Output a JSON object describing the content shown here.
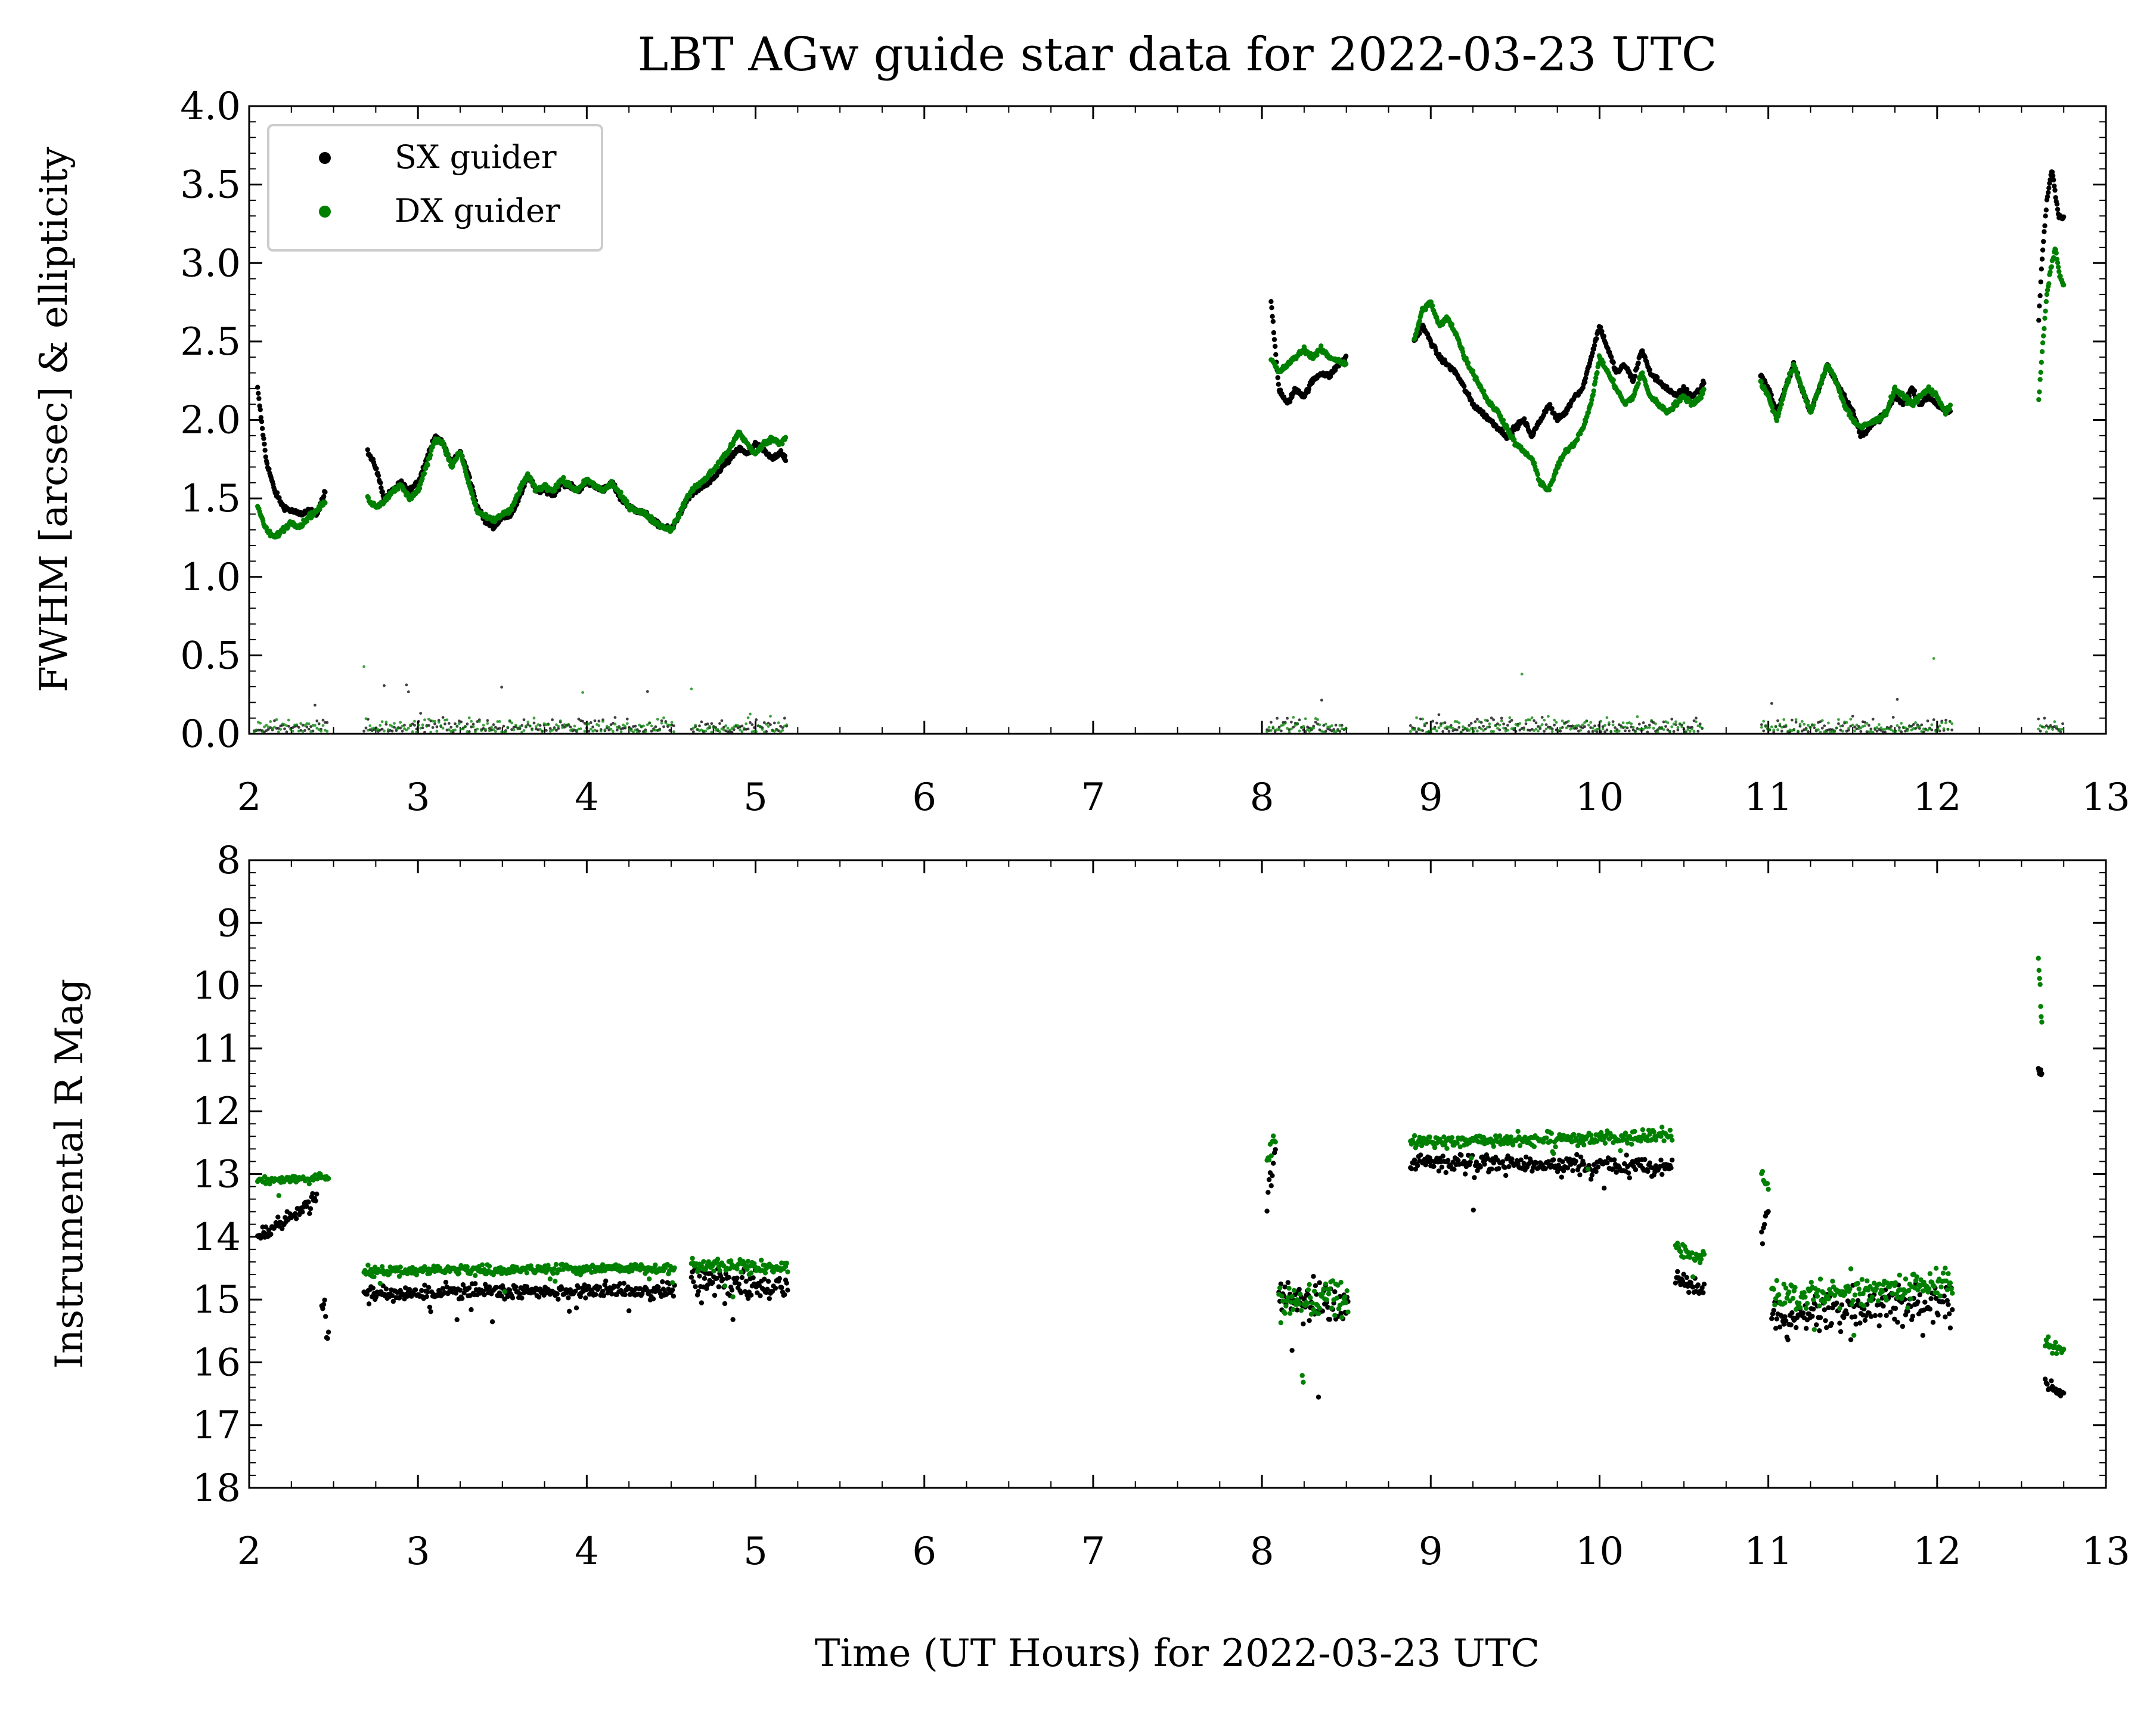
{
  "figure": {
    "title": "LBT AGw guide star data for 2022-03-23 UTC",
    "xlabel": "Time (UT Hours) for 2022-03-23 UTC"
  },
  "colors": {
    "sx": "#000000",
    "dx": "#008000"
  },
  "chart_data": [
    {
      "type": "scatter",
      "title": "LBT AGw guide star data for 2022-03-23 UTC",
      "xlabel": "",
      "ylabel": "FWHM [arcsec] & ellipticity",
      "xlim": [
        2,
        13
      ],
      "ylim": [
        0.0,
        4.0
      ],
      "xticks": [
        "2",
        "3",
        "4",
        "5",
        "6",
        "7",
        "8",
        "9",
        "10",
        "11",
        "12",
        "13"
      ],
      "yticks": [
        "0.0",
        "0.5",
        "1.0",
        "1.5",
        "2.0",
        "2.5",
        "3.0",
        "3.5",
        "4.0"
      ],
      "legend": {
        "position": "top-left",
        "entries": [
          "SX guider",
          "DX guider"
        ]
      },
      "grid": false,
      "series": [
        {
          "name": "SX guider",
          "color": "#000000",
          "kind": "fwhm",
          "x": [
            2.05,
            2.1,
            2.15,
            2.2,
            2.25,
            2.3,
            2.35,
            2.4,
            2.45,
            2.7,
            2.75,
            2.8,
            2.85,
            2.9,
            2.95,
            3.0,
            3.05,
            3.1,
            3.15,
            3.2,
            3.25,
            3.3,
            3.35,
            3.4,
            3.45,
            3.5,
            3.55,
            3.6,
            3.65,
            3.7,
            3.75,
            3.8,
            3.85,
            3.9,
            3.95,
            4.0,
            4.05,
            4.1,
            4.15,
            4.2,
            4.25,
            4.3,
            4.35,
            4.4,
            4.45,
            4.5,
            4.55,
            4.6,
            4.65,
            4.7,
            4.75,
            4.8,
            4.85,
            4.9,
            4.95,
            5.0,
            5.05,
            5.1,
            5.15,
            5.18,
            8.05,
            8.1,
            8.15,
            8.2,
            8.25,
            8.3,
            8.35,
            8.4,
            8.45,
            8.5,
            8.9,
            8.95,
            9.0,
            9.05,
            9.1,
            9.15,
            9.2,
            9.25,
            9.3,
            9.35,
            9.4,
            9.45,
            9.5,
            9.55,
            9.6,
            9.65,
            9.7,
            9.75,
            9.8,
            9.85,
            9.9,
            9.95,
            10.0,
            10.05,
            10.1,
            10.15,
            10.2,
            10.25,
            10.3,
            10.35,
            10.4,
            10.45,
            10.5,
            10.55,
            10.6,
            10.62,
            10.95,
            11.0,
            11.05,
            11.1,
            11.15,
            11.2,
            11.25,
            11.3,
            11.35,
            11.4,
            11.45,
            11.5,
            11.55,
            11.6,
            11.65,
            11.7,
            11.75,
            11.8,
            11.85,
            11.9,
            11.95,
            12.0,
            12.05,
            12.08,
            12.6,
            12.62,
            12.65,
            12.68,
            12.7,
            12.72,
            12.75
          ],
          "y": [
            2.2,
            1.75,
            1.55,
            1.45,
            1.42,
            1.4,
            1.42,
            1.4,
            1.55,
            1.8,
            1.7,
            1.5,
            1.55,
            1.6,
            1.55,
            1.6,
            1.75,
            1.9,
            1.85,
            1.72,
            1.8,
            1.65,
            1.45,
            1.35,
            1.32,
            1.38,
            1.4,
            1.5,
            1.65,
            1.55,
            1.55,
            1.52,
            1.6,
            1.58,
            1.55,
            1.6,
            1.58,
            1.55,
            1.6,
            1.5,
            1.45,
            1.42,
            1.4,
            1.35,
            1.32,
            1.3,
            1.4,
            1.5,
            1.55,
            1.58,
            1.62,
            1.7,
            1.75,
            1.82,
            1.78,
            1.85,
            1.8,
            1.75,
            1.8,
            1.75,
            2.8,
            2.2,
            2.1,
            2.2,
            2.15,
            2.25,
            2.3,
            2.28,
            2.35,
            2.4,
            2.5,
            2.6,
            2.5,
            2.4,
            2.35,
            2.3,
            2.2,
            2.1,
            2.05,
            2.0,
            1.95,
            1.9,
            1.95,
            2.0,
            1.9,
            2.0,
            2.1,
            2.0,
            2.05,
            2.15,
            2.2,
            2.4,
            2.6,
            2.45,
            2.3,
            2.35,
            2.25,
            2.45,
            2.3,
            2.25,
            2.2,
            2.15,
            2.2,
            2.15,
            2.2,
            2.25,
            2.3,
            2.2,
            2.05,
            2.2,
            2.35,
            2.2,
            2.05,
            2.2,
            2.35,
            2.25,
            2.15,
            2.05,
            1.9,
            1.95,
            2.0,
            2.05,
            2.15,
            2.1,
            2.2,
            2.1,
            2.15,
            2.1,
            2.05,
            2.05,
            2.6,
            3.0,
            3.4,
            3.6,
            3.45,
            3.3,
            3.28
          ]
        },
        {
          "name": "DX guider",
          "color": "#008000",
          "kind": "fwhm",
          "x": [
            2.05,
            2.1,
            2.15,
            2.2,
            2.25,
            2.3,
            2.35,
            2.4,
            2.45,
            2.7,
            2.75,
            2.8,
            2.85,
            2.9,
            2.95,
            3.0,
            3.05,
            3.1,
            3.15,
            3.2,
            3.25,
            3.3,
            3.35,
            3.4,
            3.45,
            3.5,
            3.55,
            3.6,
            3.65,
            3.7,
            3.75,
            3.8,
            3.85,
            3.9,
            3.95,
            4.0,
            4.05,
            4.1,
            4.15,
            4.2,
            4.25,
            4.3,
            4.35,
            4.4,
            4.45,
            4.5,
            4.55,
            4.6,
            4.65,
            4.7,
            4.75,
            4.8,
            4.85,
            4.9,
            4.95,
            5.0,
            5.05,
            5.1,
            5.15,
            5.18,
            8.05,
            8.1,
            8.15,
            8.2,
            8.25,
            8.3,
            8.35,
            8.4,
            8.45,
            8.5,
            8.9,
            8.95,
            9.0,
            9.05,
            9.1,
            9.15,
            9.2,
            9.25,
            9.3,
            9.35,
            9.4,
            9.45,
            9.5,
            9.55,
            9.6,
            9.65,
            9.7,
            9.75,
            9.8,
            9.85,
            9.9,
            9.95,
            10.0,
            10.05,
            10.1,
            10.15,
            10.2,
            10.25,
            10.3,
            10.35,
            10.4,
            10.45,
            10.5,
            10.55,
            10.6,
            10.62,
            10.95,
            11.0,
            11.05,
            11.1,
            11.15,
            11.2,
            11.25,
            11.3,
            11.35,
            11.4,
            11.45,
            11.5,
            11.55,
            11.6,
            11.65,
            11.7,
            11.75,
            11.8,
            11.85,
            11.9,
            11.95,
            12.0,
            12.05,
            12.08,
            12.6,
            12.62,
            12.65,
            12.68,
            12.7,
            12.72,
            12.75
          ],
          "y": [
            1.45,
            1.3,
            1.25,
            1.3,
            1.35,
            1.32,
            1.38,
            1.42,
            1.48,
            1.5,
            1.45,
            1.48,
            1.55,
            1.58,
            1.5,
            1.55,
            1.7,
            1.88,
            1.85,
            1.7,
            1.8,
            1.6,
            1.42,
            1.38,
            1.36,
            1.4,
            1.42,
            1.55,
            1.65,
            1.55,
            1.58,
            1.55,
            1.62,
            1.58,
            1.55,
            1.62,
            1.58,
            1.55,
            1.6,
            1.52,
            1.45,
            1.42,
            1.4,
            1.35,
            1.32,
            1.3,
            1.4,
            1.52,
            1.58,
            1.62,
            1.68,
            1.75,
            1.82,
            1.92,
            1.85,
            1.78,
            1.85,
            1.88,
            1.85,
            1.9,
            2.4,
            2.3,
            2.35,
            2.4,
            2.45,
            2.4,
            2.45,
            2.4,
            2.38,
            2.35,
            2.5,
            2.7,
            2.75,
            2.6,
            2.65,
            2.55,
            2.4,
            2.3,
            2.2,
            2.1,
            2.05,
            1.95,
            1.85,
            1.8,
            1.75,
            1.6,
            1.55,
            1.7,
            1.8,
            1.85,
            1.95,
            2.1,
            2.4,
            2.3,
            2.2,
            2.1,
            2.15,
            2.3,
            2.15,
            2.1,
            2.05,
            2.1,
            2.15,
            2.1,
            2.15,
            2.2,
            2.25,
            2.15,
            2.0,
            2.2,
            2.35,
            2.2,
            2.05,
            2.2,
            2.35,
            2.25,
            2.1,
            2.0,
            1.95,
            1.98,
            2.0,
            2.05,
            2.2,
            2.15,
            2.1,
            2.15,
            2.2,
            2.15,
            2.05,
            2.08,
            2.1,
            2.4,
            2.8,
            3.0,
            3.1,
            2.95,
            2.85
          ]
        },
        {
          "name": "SX guider",
          "color": "#000000",
          "kind": "ellipticity",
          "segments": [
            [
              2.03,
              2.47
            ],
            [
              2.68,
              4.52
            ],
            [
              4.62,
              5.19
            ],
            [
              8.03,
              8.51
            ],
            [
              8.88,
              10.62
            ],
            [
              10.96,
              12.09
            ],
            [
              12.6,
              12.75
            ]
          ],
          "typical": 0.06,
          "max": 0.35
        },
        {
          "name": "DX guider",
          "color": "#008000",
          "kind": "ellipticity",
          "segments": [
            [
              2.03,
              2.47
            ],
            [
              2.68,
              4.52
            ],
            [
              4.62,
              5.19
            ],
            [
              8.03,
              8.51
            ],
            [
              8.88,
              10.62
            ],
            [
              10.96,
              12.09
            ],
            [
              12.6,
              12.75
            ]
          ],
          "typical": 0.06,
          "max": 0.5
        }
      ]
    },
    {
      "type": "scatter",
      "xlabel": "Time (UT Hours) for 2022-03-23 UTC",
      "ylabel": "Instrumental R Mag",
      "xlim": [
        2,
        13
      ],
      "ylim": [
        18,
        8
      ],
      "inverted_y": true,
      "xticks": [
        "2",
        "3",
        "4",
        "5",
        "6",
        "7",
        "8",
        "9",
        "10",
        "11",
        "12",
        "13"
      ],
      "yticks": [
        "8",
        "9",
        "10",
        "11",
        "12",
        "13",
        "14",
        "15",
        "16",
        "17",
        "18"
      ],
      "grid": false,
      "series": [
        {
          "name": "SX guider",
          "color": "#000000",
          "segments": [
            {
              "x": [
                2.05,
                2.4
              ],
              "mag": [
                14.0,
                13.4
              ],
              "scatter": 0.12
            },
            {
              "x": [
                2.43,
                2.47
              ],
              "mag": [
                15.2,
                15.5
              ],
              "scatter": 0.3
            },
            {
              "x": [
                2.68,
                4.52
              ],
              "mag": [
                14.9,
                14.85
              ],
              "scatter": 0.12
            },
            {
              "x": [
                4.62,
                5.19
              ],
              "mag": [
                14.7,
                14.8
              ],
              "scatter": 0.25
            },
            {
              "x": [
                8.03,
                8.08
              ],
              "mag": [
                13.5,
                12.7
              ],
              "scatter": 0.25
            },
            {
              "x": [
                8.1,
                8.51
              ],
              "mag": [
                15.0,
                15.1
              ],
              "scatter": 0.35
            },
            {
              "x": [
                8.88,
                10.43
              ],
              "mag": [
                12.8,
                12.9
              ],
              "scatter": 0.15
            },
            {
              "x": [
                10.45,
                10.62
              ],
              "mag": [
                14.65,
                14.85
              ],
              "scatter": 0.12
            },
            {
              "x": [
                10.96,
                11.0
              ],
              "mag": [
                14.0,
                13.6
              ],
              "scatter": 0.2
            },
            {
              "x": [
                11.02,
                12.09
              ],
              "mag": [
                15.3,
                15.0
              ],
              "scatter": 0.3
            },
            {
              "x": [
                12.6,
                12.62
              ],
              "mag": [
                11.35,
                11.4
              ],
              "scatter": 0.05
            },
            {
              "x": [
                12.64,
                12.75
              ],
              "mag": [
                16.35,
                16.5
              ],
              "scatter": 0.1
            }
          ]
        },
        {
          "name": "DX guider",
          "color": "#008000",
          "segments": [
            {
              "x": [
                2.05,
                2.47
              ],
              "mag": [
                13.1,
                13.05
              ],
              "scatter": 0.05
            },
            {
              "x": [
                2.68,
                4.52
              ],
              "mag": [
                14.55,
                14.5
              ],
              "scatter": 0.08
            },
            {
              "x": [
                4.62,
                5.19
              ],
              "mag": [
                14.45,
                14.5
              ],
              "scatter": 0.1
            },
            {
              "x": [
                8.03,
                8.08
              ],
              "mag": [
                12.9,
                12.4
              ],
              "scatter": 0.2
            },
            {
              "x": [
                8.1,
                8.51
              ],
              "mag": [
                15.0,
                15.0
              ],
              "scatter": 0.3
            },
            {
              "x": [
                8.88,
                10.43
              ],
              "mag": [
                12.5,
                12.4
              ],
              "scatter": 0.1
            },
            {
              "x": [
                10.45,
                10.62
              ],
              "mag": [
                14.2,
                14.35
              ],
              "scatter": 0.1
            },
            {
              "x": [
                10.96,
                11.0
              ],
              "mag": [
                13.0,
                13.3
              ],
              "scatter": 0.15
            },
            {
              "x": [
                11.02,
                12.09
              ],
              "mag": [
                15.0,
                14.7
              ],
              "scatter": 0.25
            },
            {
              "x": [
                12.6,
                12.62
              ],
              "mag": [
                9.5,
                10.6
              ],
              "scatter": 0.1
            },
            {
              "x": [
                12.64,
                12.75
              ],
              "mag": [
                15.7,
                15.85
              ],
              "scatter": 0.1
            }
          ]
        }
      ]
    }
  ]
}
